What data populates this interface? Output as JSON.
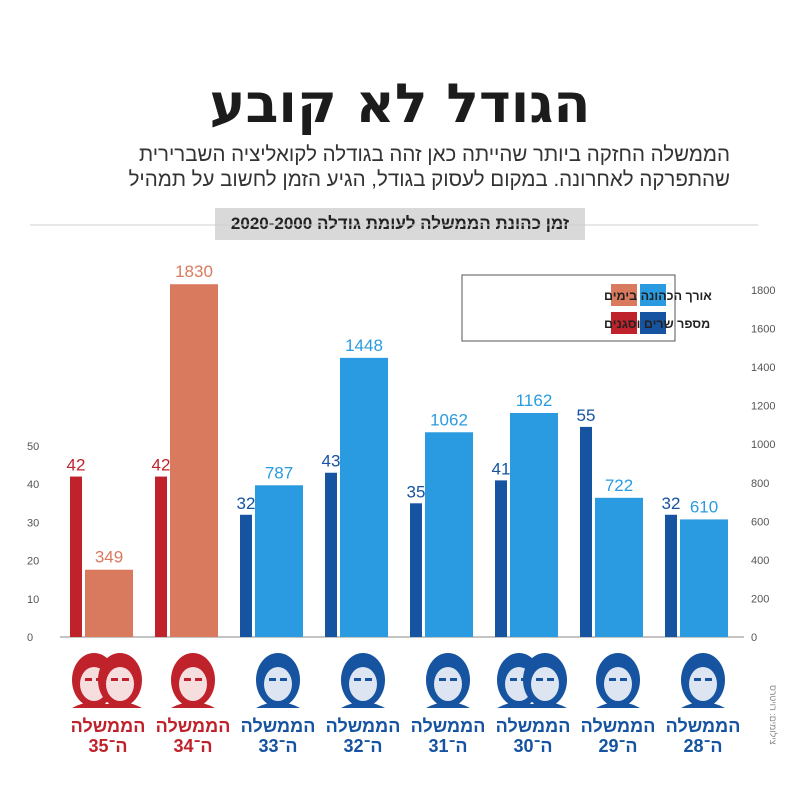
{
  "header": {
    "title": "הגודל לא קובע",
    "subtitle_line1": "הממשלה החזקה ביותר שהייתה כאן זהה בגודלה לקואליציה השברירית",
    "subtitle_line2": "שהתפרקה לאחרונה. במקום לעסוק בגודל, הגיע הזמן לחשוב על תמהיל",
    "banner": "זמן כהונת הממשלה לעומת גודלה 2020-2000"
  },
  "credit": "צילומים: רויטרס",
  "colors": {
    "days_blue": "#2a9be0",
    "ministers_blue": "#1653a0",
    "days_red": "#d97a5e",
    "ministers_red": "#c0222b"
  },
  "chart_data": {
    "type": "bar",
    "categories": [
      "הממשלה ה־35",
      "הממשלה ה־34",
      "הממשלה ה־33",
      "הממשלה ה־32",
      "הממשלה ה־31",
      "הממשלה ה־30",
      "הממשלה ה־29",
      "הממשלה ה־28"
    ],
    "category_lines": [
      [
        "הממשלה",
        "ה־35"
      ],
      [
        "הממשלה",
        "ה־34"
      ],
      [
        "הממשלה",
        "ה־33"
      ],
      [
        "הממשלה",
        "ה־32"
      ],
      [
        "הממשלה",
        "ה־31"
      ],
      [
        "הממשלה",
        "ה־30"
      ],
      [
        "הממשלה",
        "ה־29"
      ],
      [
        "הממשלה",
        "ה־28"
      ]
    ],
    "series": [
      {
        "name": "מספר שרים וסגנים",
        "axis": "left",
        "values": [
          42,
          42,
          32,
          43,
          35,
          41,
          55,
          32
        ]
      },
      {
        "name": "אורך הכהונה בימים",
        "axis": "right",
        "values": [
          349,
          1830,
          787,
          1448,
          1062,
          1162,
          722,
          610
        ]
      }
    ],
    "left_axis": {
      "range": [
        0,
        50
      ],
      "ticks": [
        0,
        10,
        20,
        30,
        40,
        50
      ]
    },
    "right_axis": {
      "range": [
        0,
        1800
      ],
      "ticks": [
        0,
        200,
        400,
        600,
        800,
        1000,
        1200,
        1400,
        1600,
        1800
      ]
    },
    "legend": {
      "placement": "top-right",
      "entries": [
        "אורך הכהונה בימים",
        "מספר שרים וסגנים"
      ]
    },
    "highlight": {
      "red_categories": [
        "הממשלה ה־35",
        "הממשלה ה־34"
      ]
    }
  }
}
